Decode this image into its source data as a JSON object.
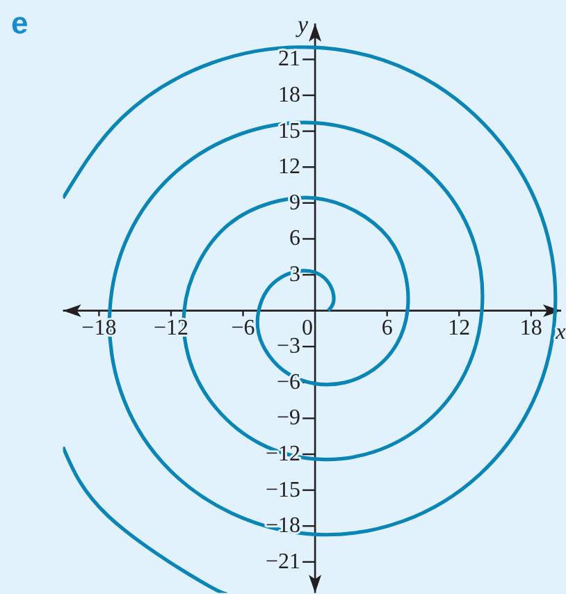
{
  "chart_data": {
    "type": "line",
    "title": "e",
    "xlabel": "x",
    "ylabel": "y",
    "xlim": [
      -21,
      20.5
    ],
    "ylim": [
      -23.6,
      24
    ],
    "xticks": [
      -18,
      -12,
      -6,
      0,
      6,
      12,
      18
    ],
    "yticks": [
      -21,
      -18,
      -15,
      -12,
      -9,
      -6,
      -3,
      3,
      6,
      9,
      12,
      15,
      18,
      21
    ],
    "series": [
      {
        "color": "#0a85b5",
        "x": [
          1.1,
          1.5,
          1.5,
          1.0,
          0,
          -1.4,
          -2.8,
          -4.0,
          -4.7,
          -4.7,
          -3.8,
          -2.2,
          0,
          2.5,
          4.9,
          6.8,
          7.7,
          7.5,
          6.1,
          3.4,
          0,
          -3.7,
          -7.2,
          -9.7,
          -10.9,
          -10.4,
          -8.2,
          -4.6,
          0,
          4.9,
          9.3,
          12.5,
          13.9,
          13.3,
          10.5,
          5.8,
          0,
          -6.1,
          -11.6,
          -15.5,
          -17.1,
          -16.2,
          -12.7,
          -7.0,
          0,
          7.3,
          13.7,
          18.2,
          20.0,
          18.9,
          14.8,
          8.2,
          0,
          -8.6,
          -16.1,
          -21.0,
          null,
          -21.0,
          -17.2,
          -9.4,
          -7.3
        ],
        "values": [
          0,
          0.6,
          1.5,
          2.5,
          3.2,
          3.3,
          2.8,
          1.7,
          0,
          -1.9,
          -3.8,
          -5.3,
          -6.1,
          -6.0,
          -4.9,
          -2.8,
          0,
          3.1,
          6.1,
          8.3,
          9.4,
          9.0,
          7.2,
          4.0,
          0,
          -4.3,
          -8.2,
          -11.1,
          -12.4,
          -11.8,
          -9.3,
          -5.2,
          0,
          5.5,
          10.5,
          14.1,
          15.7,
          14.8,
          11.6,
          6.4,
          0,
          -6.7,
          -12.7,
          -16.9,
          -18.7,
          -17.6,
          -13.7,
          -7.5,
          0,
          7.8,
          14.8,
          19.9,
          22.0,
          20.7,
          16.1,
          9.4,
          null,
          -11.4,
          -17.2,
          -22.7,
          -23.6
        ]
      }
    ]
  }
}
